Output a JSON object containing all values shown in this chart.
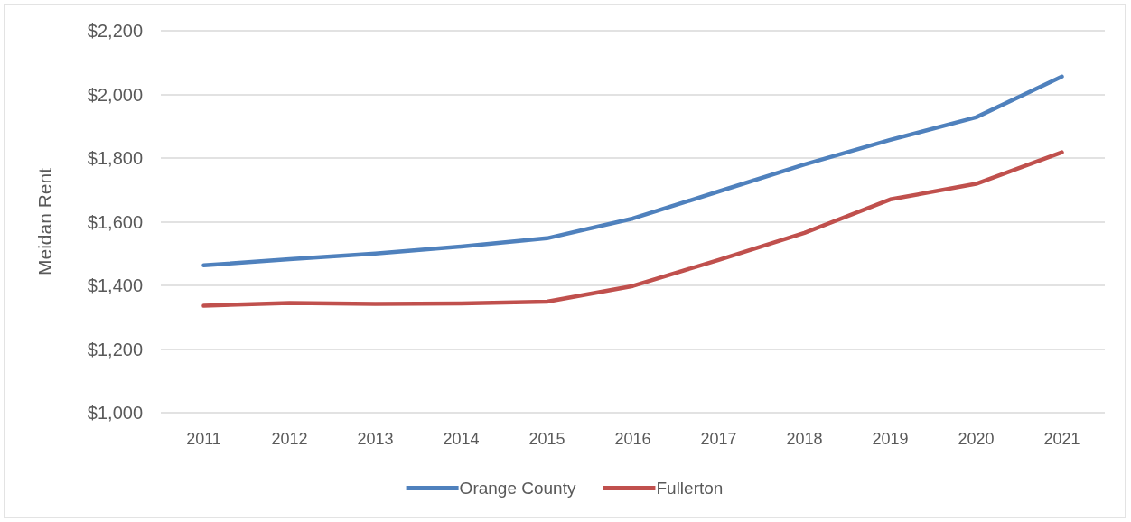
{
  "chart_data": {
    "type": "line",
    "ylabel": "Meidan Rent",
    "categories": [
      "2011",
      "2012",
      "2013",
      "2014",
      "2015",
      "2016",
      "2017",
      "2018",
      "2019",
      "2020",
      "2021"
    ],
    "series": [
      {
        "name": "Orange County",
        "color": "#4f81bd",
        "values": [
          1463,
          1482,
          1500,
          1522,
          1548,
          1610,
          1695,
          1780,
          1857,
          1928,
          2056
        ]
      },
      {
        "name": "Fullerton",
        "color": "#c0504d",
        "values": [
          1336,
          1345,
          1342,
          1343,
          1349,
          1398,
          1480,
          1565,
          1670,
          1719,
          1818
        ]
      }
    ],
    "ylim": [
      1000,
      2200
    ],
    "yticks": [
      {
        "value": 1000,
        "label": "$1,000"
      },
      {
        "value": 1200,
        "label": "$1,200"
      },
      {
        "value": 1400,
        "label": "$1,400"
      },
      {
        "value": 1600,
        "label": "$1,600"
      },
      {
        "value": 1800,
        "label": "$1,800"
      },
      {
        "value": 2000,
        "label": "$2,000"
      },
      {
        "value": 2200,
        "label": "$2,200"
      }
    ],
    "grid": "y",
    "legend": "bottom",
    "marker": "none",
    "line_style": "solid"
  }
}
